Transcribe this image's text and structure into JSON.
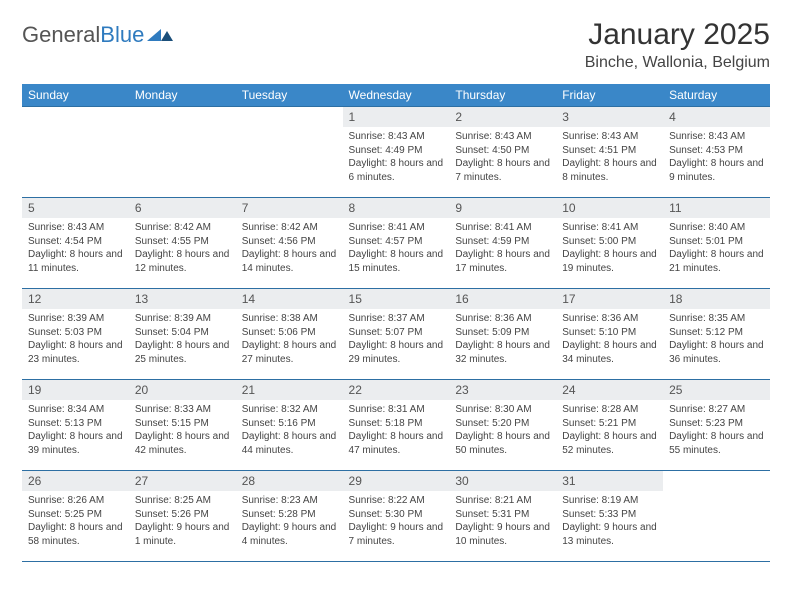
{
  "logo": {
    "word1": "General",
    "word2": "Blue"
  },
  "title": "January 2025",
  "location": "Binche, Wallonia, Belgium",
  "colors": {
    "header_bg": "#3a87c8",
    "header_text": "#ffffff",
    "row_border": "#2d6fa3",
    "daynum_bg": "#ebedef",
    "text": "#444444"
  },
  "weekdays": [
    "Sunday",
    "Monday",
    "Tuesday",
    "Wednesday",
    "Thursday",
    "Friday",
    "Saturday"
  ],
  "first_day_index": 3,
  "days": [
    {
      "n": "1",
      "sr": "8:43 AM",
      "ss": "4:49 PM",
      "dl": "8 hours and 6 minutes."
    },
    {
      "n": "2",
      "sr": "8:43 AM",
      "ss": "4:50 PM",
      "dl": "8 hours and 7 minutes."
    },
    {
      "n": "3",
      "sr": "8:43 AM",
      "ss": "4:51 PM",
      "dl": "8 hours and 8 minutes."
    },
    {
      "n": "4",
      "sr": "8:43 AM",
      "ss": "4:53 PM",
      "dl": "8 hours and 9 minutes."
    },
    {
      "n": "5",
      "sr": "8:43 AM",
      "ss": "4:54 PM",
      "dl": "8 hours and 11 minutes."
    },
    {
      "n": "6",
      "sr": "8:42 AM",
      "ss": "4:55 PM",
      "dl": "8 hours and 12 minutes."
    },
    {
      "n": "7",
      "sr": "8:42 AM",
      "ss": "4:56 PM",
      "dl": "8 hours and 14 minutes."
    },
    {
      "n": "8",
      "sr": "8:41 AM",
      "ss": "4:57 PM",
      "dl": "8 hours and 15 minutes."
    },
    {
      "n": "9",
      "sr": "8:41 AM",
      "ss": "4:59 PM",
      "dl": "8 hours and 17 minutes."
    },
    {
      "n": "10",
      "sr": "8:41 AM",
      "ss": "5:00 PM",
      "dl": "8 hours and 19 minutes."
    },
    {
      "n": "11",
      "sr": "8:40 AM",
      "ss": "5:01 PM",
      "dl": "8 hours and 21 minutes."
    },
    {
      "n": "12",
      "sr": "8:39 AM",
      "ss": "5:03 PM",
      "dl": "8 hours and 23 minutes."
    },
    {
      "n": "13",
      "sr": "8:39 AM",
      "ss": "5:04 PM",
      "dl": "8 hours and 25 minutes."
    },
    {
      "n": "14",
      "sr": "8:38 AM",
      "ss": "5:06 PM",
      "dl": "8 hours and 27 minutes."
    },
    {
      "n": "15",
      "sr": "8:37 AM",
      "ss": "5:07 PM",
      "dl": "8 hours and 29 minutes."
    },
    {
      "n": "16",
      "sr": "8:36 AM",
      "ss": "5:09 PM",
      "dl": "8 hours and 32 minutes."
    },
    {
      "n": "17",
      "sr": "8:36 AM",
      "ss": "5:10 PM",
      "dl": "8 hours and 34 minutes."
    },
    {
      "n": "18",
      "sr": "8:35 AM",
      "ss": "5:12 PM",
      "dl": "8 hours and 36 minutes."
    },
    {
      "n": "19",
      "sr": "8:34 AM",
      "ss": "5:13 PM",
      "dl": "8 hours and 39 minutes."
    },
    {
      "n": "20",
      "sr": "8:33 AM",
      "ss": "5:15 PM",
      "dl": "8 hours and 42 minutes."
    },
    {
      "n": "21",
      "sr": "8:32 AM",
      "ss": "5:16 PM",
      "dl": "8 hours and 44 minutes."
    },
    {
      "n": "22",
      "sr": "8:31 AM",
      "ss": "5:18 PM",
      "dl": "8 hours and 47 minutes."
    },
    {
      "n": "23",
      "sr": "8:30 AM",
      "ss": "5:20 PM",
      "dl": "8 hours and 50 minutes."
    },
    {
      "n": "24",
      "sr": "8:28 AM",
      "ss": "5:21 PM",
      "dl": "8 hours and 52 minutes."
    },
    {
      "n": "25",
      "sr": "8:27 AM",
      "ss": "5:23 PM",
      "dl": "8 hours and 55 minutes."
    },
    {
      "n": "26",
      "sr": "8:26 AM",
      "ss": "5:25 PM",
      "dl": "8 hours and 58 minutes."
    },
    {
      "n": "27",
      "sr": "8:25 AM",
      "ss": "5:26 PM",
      "dl": "9 hours and 1 minute."
    },
    {
      "n": "28",
      "sr": "8:23 AM",
      "ss": "5:28 PM",
      "dl": "9 hours and 4 minutes."
    },
    {
      "n": "29",
      "sr": "8:22 AM",
      "ss": "5:30 PM",
      "dl": "9 hours and 7 minutes."
    },
    {
      "n": "30",
      "sr": "8:21 AM",
      "ss": "5:31 PM",
      "dl": "9 hours and 10 minutes."
    },
    {
      "n": "31",
      "sr": "8:19 AM",
      "ss": "5:33 PM",
      "dl": "9 hours and 13 minutes."
    }
  ],
  "labels": {
    "sunrise": "Sunrise:",
    "sunset": "Sunset:",
    "daylight": "Daylight:"
  }
}
